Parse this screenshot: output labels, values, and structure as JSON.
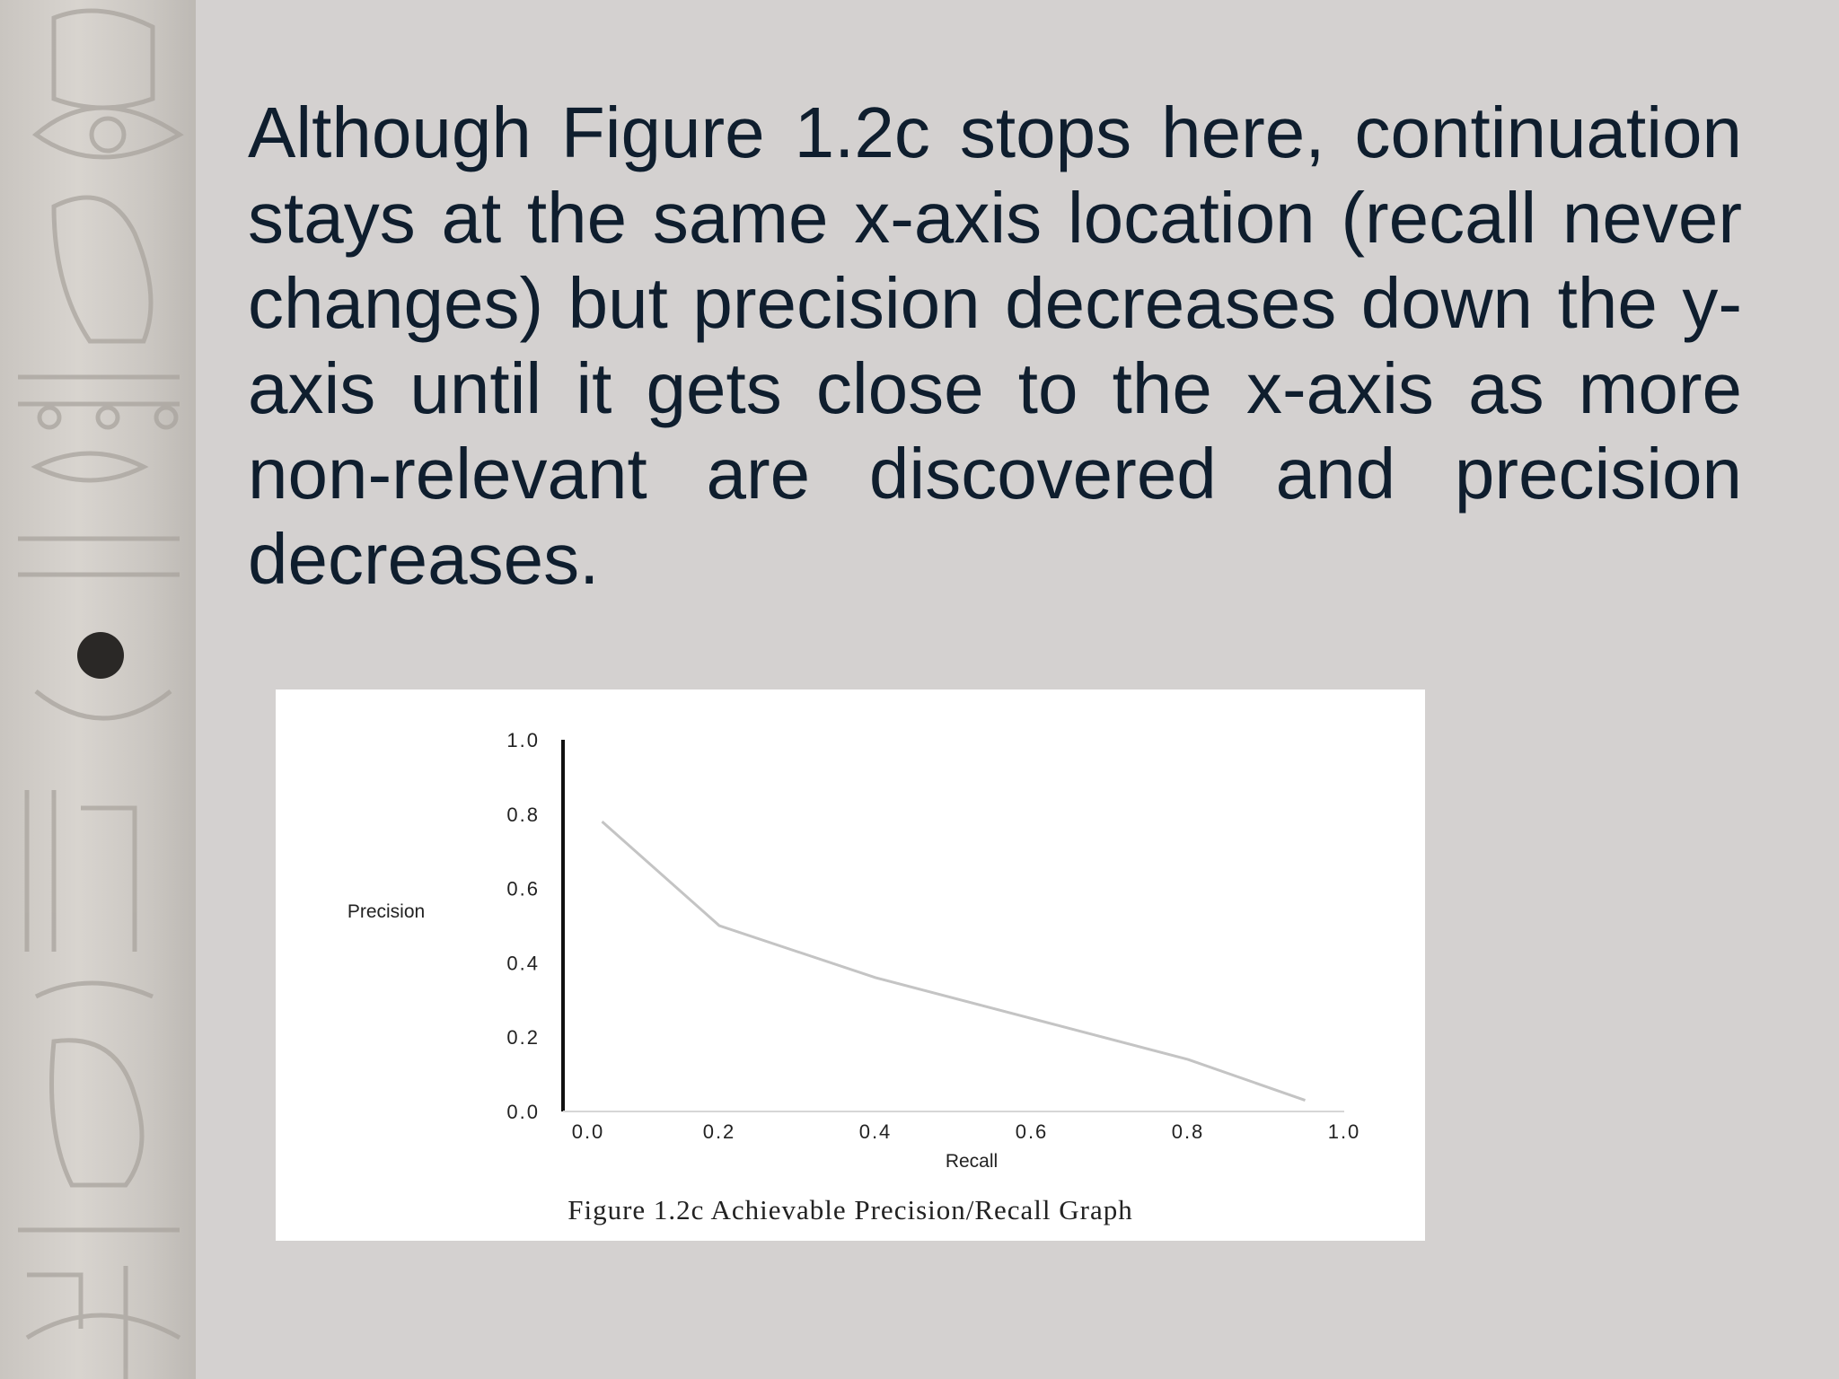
{
  "slide": {
    "body_text": "Although Figure 1.2c stops here, continuation stays at the same x-axis location (recall never changes) but precision decreases down the y-axis until it gets close to the x-axis as more non-relevant are discovered and precision decreases."
  },
  "chart_data": {
    "type": "line",
    "title": "",
    "xlabel": "Recall",
    "ylabel": "Precision",
    "x_ticks": [
      "0.0",
      "0.2",
      "0.4",
      "0.6",
      "0.8",
      "1.0"
    ],
    "y_ticks": [
      "0.0",
      "0.2",
      "0.4",
      "0.6",
      "0.8",
      "1.0"
    ],
    "xlim": [
      0,
      1
    ],
    "ylim": [
      0,
      1
    ],
    "grid": false,
    "series": [
      {
        "x": [
          0.05,
          0.2,
          0.4,
          0.6,
          0.8,
          0.95
        ],
        "y": [
          0.78,
          0.5,
          0.36,
          0.25,
          0.14,
          0.03
        ]
      }
    ],
    "caption": "Figure  1.2c   Achievable Precision/Recall Graph",
    "line_color": "#c4c4c4",
    "axis_color": "#111111"
  }
}
